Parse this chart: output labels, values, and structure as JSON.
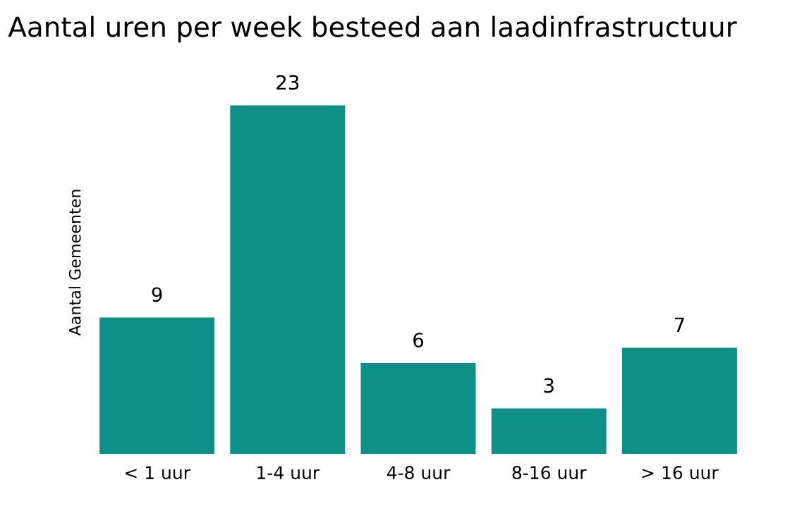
{
  "chart_data": {
    "type": "bar",
    "title": "Aantal uren per week besteed aan laadinfrastructuur",
    "ylabel": "Aantal Gemeenten",
    "categories": [
      "< 1 uur",
      "1-4 uur",
      "4-8 uur",
      "8-16 uur",
      "> 16 uur"
    ],
    "values": [
      9,
      23,
      6,
      3,
      7
    ],
    "color": "#0e8f87",
    "data_labels": true,
    "grid": false,
    "legend": false
  }
}
